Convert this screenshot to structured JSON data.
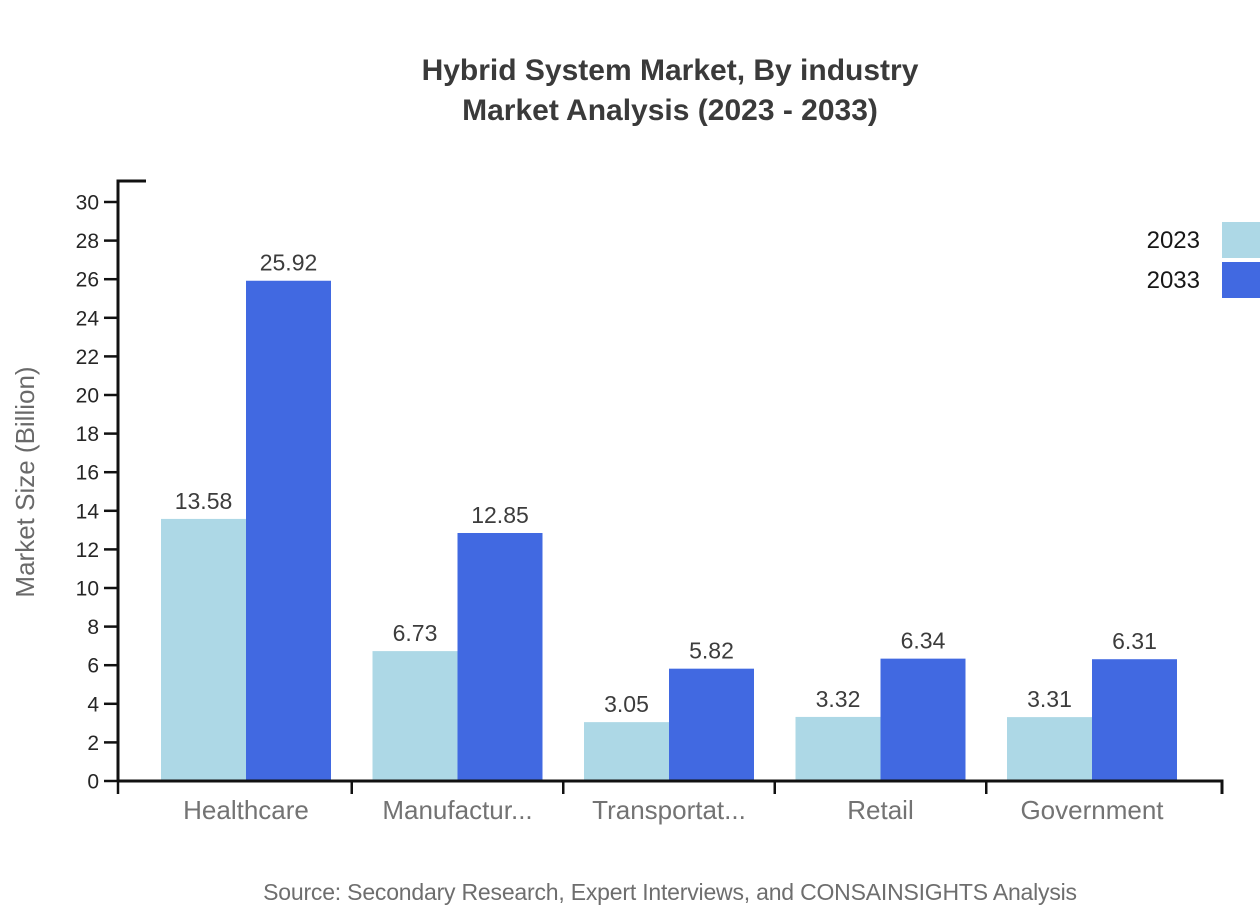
{
  "chart_data": {
    "type": "bar",
    "title": "Hybrid System Market, By industry",
    "subtitle": "Market Analysis (2023 - 2033)",
    "ylabel": "Market Size (Billion)",
    "xlabel": "",
    "categories": [
      "Healthcare",
      "Manufactur...",
      "Transportat...",
      "Retail",
      "Government"
    ],
    "series": [
      {
        "name": "2023",
        "color": "#ADD8E6",
        "values": [
          13.58,
          6.73,
          3.05,
          3.32,
          3.31
        ]
      },
      {
        "name": "2033",
        "color": "#4169E1",
        "values": [
          25.92,
          12.85,
          5.82,
          6.34,
          6.31
        ]
      }
    ],
    "ylim": [
      0,
      30
    ],
    "yticks": [
      0,
      2,
      4,
      6,
      8,
      10,
      12,
      14,
      16,
      18,
      20,
      22,
      24,
      26,
      28,
      30
    ],
    "grid": false,
    "legend_position": "top-right",
    "value_label_decimals": 2,
    "source": "Source: Secondary Research, Expert Interviews, and CONSAINSIGHTS Analysis"
  },
  "colors": {
    "series_2023": "#ADD8E6",
    "series_2033": "#4169E1",
    "axis": "#111111",
    "title_text": "#3a3a3a",
    "category_text": "#737373",
    "source_text": "#6e6e6e"
  }
}
